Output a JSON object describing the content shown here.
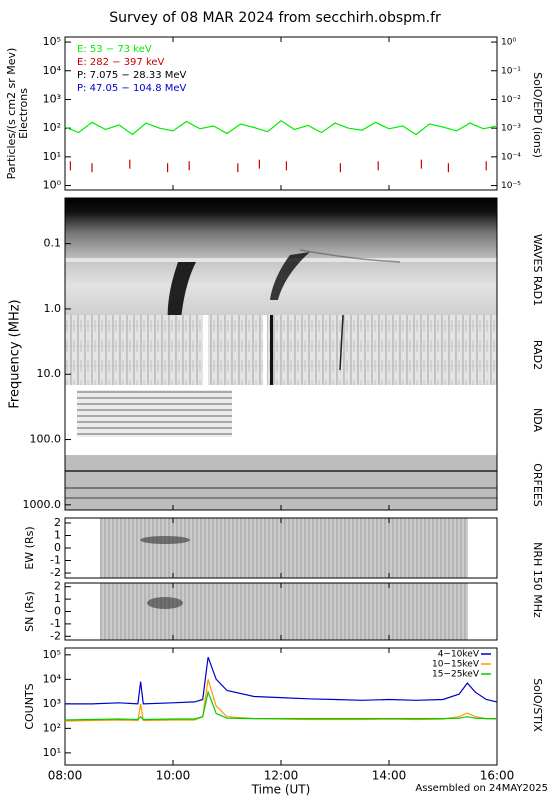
{
  "title": "Survey of 08 MAR 2024 from secchirh.obspm.fr",
  "footer": "Assembled on 24MAY2025",
  "chart_data": [
    {
      "type": "line",
      "ylabel": "Particles/(s cm2 sr Mev)",
      "ylabel2": "Electrons",
      "right_label": "SolO/EPD (ions)",
      "log_y": true,
      "xlim": [
        8,
        16
      ],
      "ylim": [
        0.7,
        150000
      ],
      "yticks": [
        {
          "value": 1,
          "label": "10⁰"
        },
        {
          "value": 10,
          "label": "10¹"
        },
        {
          "value": 100,
          "label": "10²"
        },
        {
          "value": 1000,
          "label": "10³"
        },
        {
          "value": 10000,
          "label": "10⁴"
        },
        {
          "value": 100000,
          "label": "10⁵"
        }
      ],
      "y2lim": [
        7e-06,
        1.5
      ],
      "y2ticks": [
        {
          "value": 1e-05,
          "label": "10⁻⁵"
        },
        {
          "value": 0.0001,
          "label": "10⁻⁴"
        },
        {
          "value": 0.001,
          "label": "10⁻³"
        },
        {
          "value": 0.01,
          "label": "10⁻²"
        },
        {
          "value": 0.1,
          "label": "10⁻¹"
        },
        {
          "value": 1,
          "label": "10⁰"
        }
      ],
      "series": [
        {
          "name": "E: 53 − 73 keV",
          "color": "#00ee00",
          "x": [
            8,
            8.25,
            8.5,
            8.75,
            9,
            9.25,
            9.5,
            9.75,
            10,
            10.25,
            10.5,
            10.75,
            11,
            11.25,
            11.5,
            11.75,
            12,
            12.25,
            12.5,
            12.75,
            13,
            13.25,
            13.5,
            13.75,
            14,
            14.25,
            14.5,
            14.75,
            15,
            15.25,
            15.5,
            15.75,
            16
          ],
          "values": [
            110,
            70,
            160,
            90,
            130,
            60,
            150,
            100,
            80,
            170,
            95,
            120,
            65,
            140,
            105,
            75,
            180,
            90,
            125,
            70,
            150,
            100,
            85,
            160,
            95,
            120,
            60,
            140,
            110,
            80,
            150,
            95,
            120
          ]
        },
        {
          "name": "E: 282 − 397 keV",
          "color": "#cc0000",
          "style": "spikes",
          "x": [
            8.1,
            8.5,
            9.2,
            9.9,
            10.3,
            11.2,
            11.6,
            12.1,
            13.1,
            13.8,
            14.6,
            15.1,
            15.8
          ],
          "values": [
            7,
            6,
            8,
            6,
            7,
            6,
            8,
            7,
            6,
            7,
            8,
            6,
            7
          ]
        },
        {
          "name": "P: 7.075 − 28.33 MeV",
          "color": "#000000"
        },
        {
          "name": "P: 47.05 − 104.8 MeV",
          "color": "#0000cc"
        }
      ]
    },
    {
      "type": "spectrogram",
      "ylabel": "Frequency (MHz)",
      "log_y": true,
      "inverted": true,
      "ylim": [
        0.02,
        1200
      ],
      "yticks": [
        0.1,
        {
          "value": 1,
          "label": "1.0"
        },
        {
          "value": 10,
          "label": "10.0"
        },
        {
          "value": 100,
          "label": "100.0"
        },
        {
          "value": 1000,
          "label": "1000.0"
        }
      ],
      "instruments": [
        "WAVES RAD1",
        "RAD2",
        "NDA",
        "ORFEES"
      ]
    },
    {
      "type": "image",
      "ylabel": "EW (Rs)",
      "right_label": "NRH 150 MHz",
      "ylim": [
        -2.4,
        2.4
      ],
      "yticks": [
        -2,
        -1,
        0,
        1,
        2
      ]
    },
    {
      "type": "image",
      "ylabel": "SN (Rs)",
      "ylim": [
        -2.3,
        2.3
      ],
      "yticks": [
        -2,
        -1,
        0,
        1,
        2
      ]
    },
    {
      "type": "line",
      "ylabel": "COUNTS",
      "right_label": "SolO/STIX",
      "xlabel": "Time (UT)",
      "log_y": true,
      "legend": "upper right",
      "xlim": [
        8,
        16
      ],
      "ylim": [
        3.2,
        190000
      ],
      "xticks": [
        {
          "value": 8,
          "label": "08:00"
        },
        {
          "value": 10,
          "label": "10:00"
        },
        {
          "value": 12,
          "label": "12:00"
        },
        {
          "value": 14,
          "label": "14:00"
        },
        {
          "value": 16,
          "label": "16:00"
        }
      ],
      "yticks": [
        {
          "value": 10,
          "label": "10¹"
        },
        {
          "value": 100,
          "label": "10²"
        },
        {
          "value": 1000,
          "label": "10³"
        },
        {
          "value": 10000,
          "label": "10⁴"
        },
        {
          "value": 100000,
          "label": "10⁵"
        }
      ],
      "x": [
        8,
        8.5,
        9,
        9.35,
        9.4,
        9.45,
        10,
        10.4,
        10.55,
        10.65,
        10.72,
        10.8,
        11,
        11.5,
        12,
        12.5,
        13,
        13.5,
        14,
        14.5,
        15,
        15.3,
        15.45,
        15.6,
        15.8,
        16
      ],
      "series": [
        {
          "name": "4−10keV",
          "color": "#0000cc",
          "values": [
            1000,
            1000,
            1100,
            1000,
            8000,
            1000,
            1100,
            1200,
            1500,
            80000,
            30000,
            10000,
            3500,
            2000,
            1800,
            1600,
            1500,
            1400,
            1500,
            1400,
            1500,
            2500,
            7000,
            3000,
            1500,
            1200
          ]
        },
        {
          "name": "10−15keV",
          "color": "#ff9900",
          "values": [
            200,
            210,
            220,
            210,
            1000,
            210,
            220,
            220,
            300,
            10000,
            3000,
            800,
            300,
            250,
            240,
            230,
            230,
            230,
            240,
            230,
            240,
            300,
            420,
            300,
            250,
            240
          ]
        },
        {
          "name": "15−25keV",
          "color": "#00cc00",
          "values": [
            220,
            230,
            240,
            230,
            300,
            230,
            240,
            240,
            300,
            3000,
            1200,
            400,
            260,
            250,
            250,
            250,
            250,
            250,
            250,
            250,
            250,
            260,
            300,
            260,
            250,
            250
          ]
        }
      ]
    }
  ]
}
